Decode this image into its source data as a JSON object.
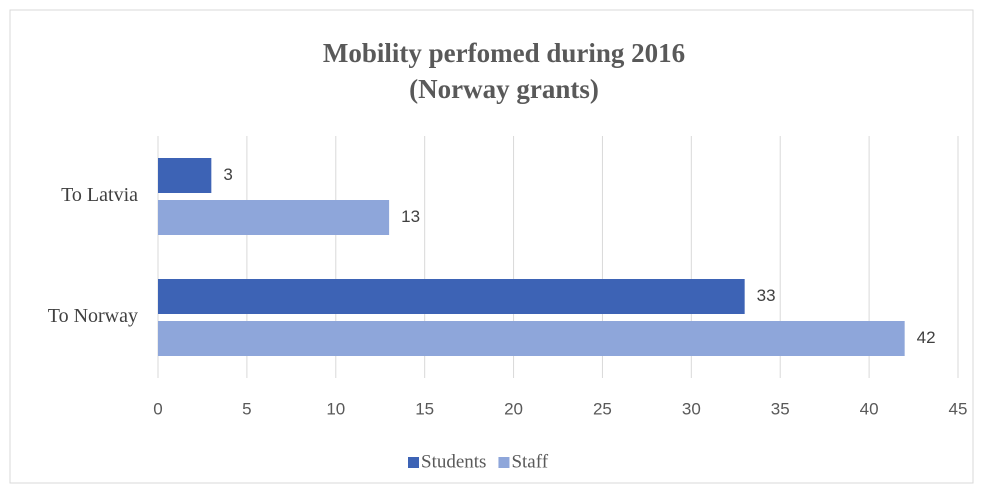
{
  "chart_data": {
    "type": "bar",
    "orientation": "horizontal",
    "title": "Mobility perfomed during 2016",
    "subtitle": "(Norway grants)",
    "categories": [
      "To Latvia",
      "To Norway"
    ],
    "series": [
      {
        "name": "Students",
        "color": "#3d63b5",
        "values": [
          3,
          33
        ]
      },
      {
        "name": "Staff",
        "color": "#8ea6da",
        "values": [
          13,
          42
        ]
      }
    ],
    "xlim": [
      0,
      45
    ],
    "xticks": [
      0,
      5,
      10,
      15,
      20,
      25,
      30,
      35,
      40,
      45
    ],
    "grid": true,
    "legend": "bottom"
  }
}
